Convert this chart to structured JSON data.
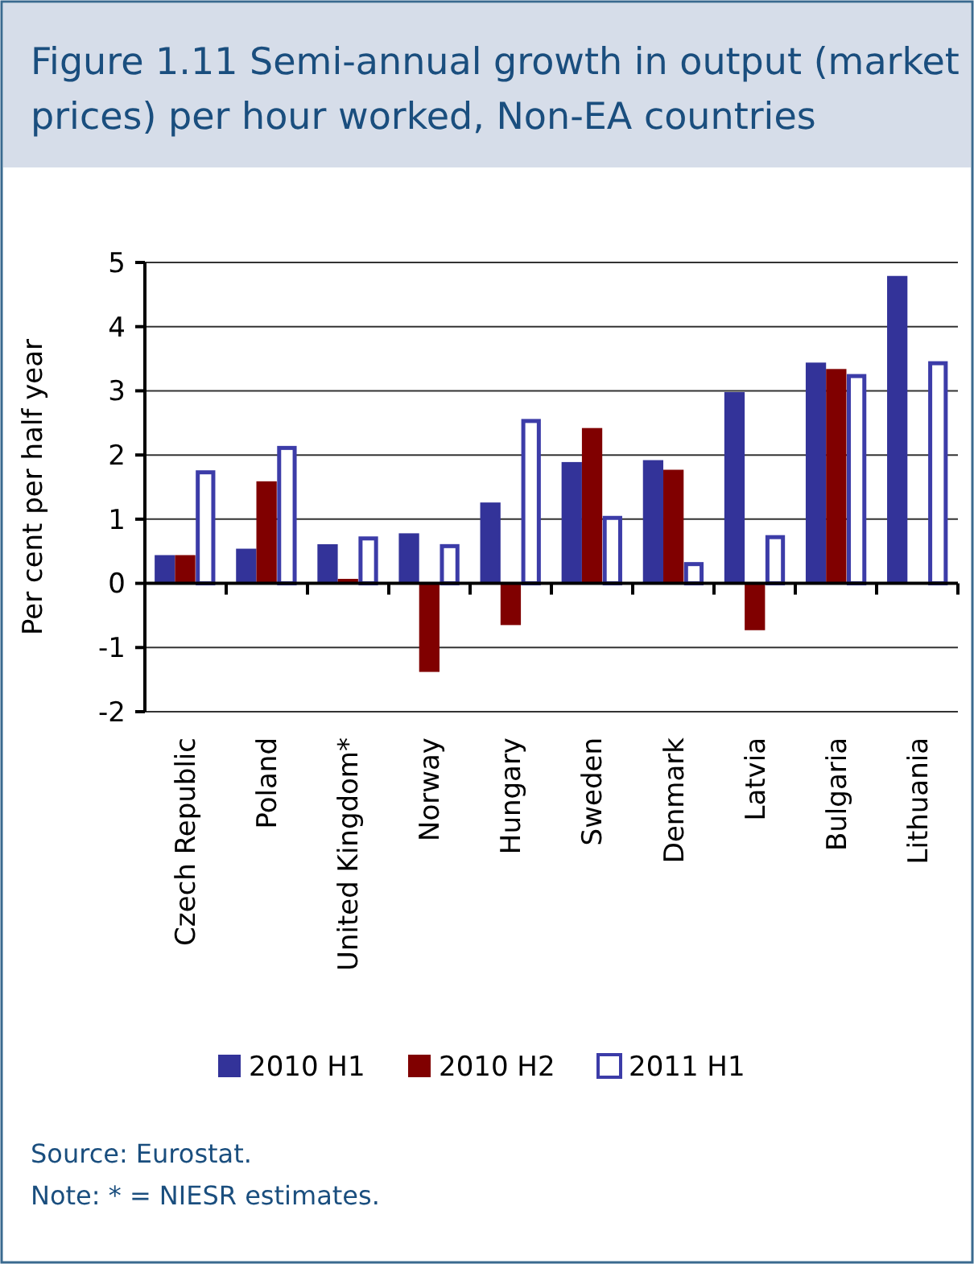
{
  "chart_data": {
    "type": "bar",
    "title": "Figure 1.11 Semi-annual  growth in output (market prices) per hour worked, Non-EA countries",
    "categories": [
      "Czech Republic",
      "Poland",
      "United Kingdom*",
      "Norway",
      "Hungary",
      "Sweden",
      "Denmark",
      "Latvia",
      "Bulgaria",
      "Lithuania"
    ],
    "series": [
      {
        "name": "2010 H1",
        "color": "#333399",
        "values": [
          0.44,
          0.54,
          0.61,
          0.78,
          1.26,
          1.89,
          1.92,
          2.98,
          3.44,
          4.79
        ]
      },
      {
        "name": "2010 H2",
        "color": "#800000",
        "values": [
          0.44,
          1.59,
          0.07,
          -1.38,
          -0.65,
          2.42,
          1.77,
          -0.73,
          3.34,
          null
        ]
      },
      {
        "name": "2011 H1",
        "color": "#3c3ca8",
        "values": [
          1.73,
          2.11,
          0.7,
          0.58,
          2.53,
          1.02,
          0.3,
          0.72,
          3.23,
          3.43
        ]
      }
    ],
    "ylabel": "Per cent per half year",
    "ylim": [
      -2,
      5
    ],
    "yticks": [
      -2,
      -1,
      0,
      1,
      2,
      3,
      4,
      5
    ],
    "grid": "y",
    "legend": "bottom",
    "annotations": [
      "Source: Eurostat.",
      "Note: * = NIESR estimates."
    ]
  }
}
